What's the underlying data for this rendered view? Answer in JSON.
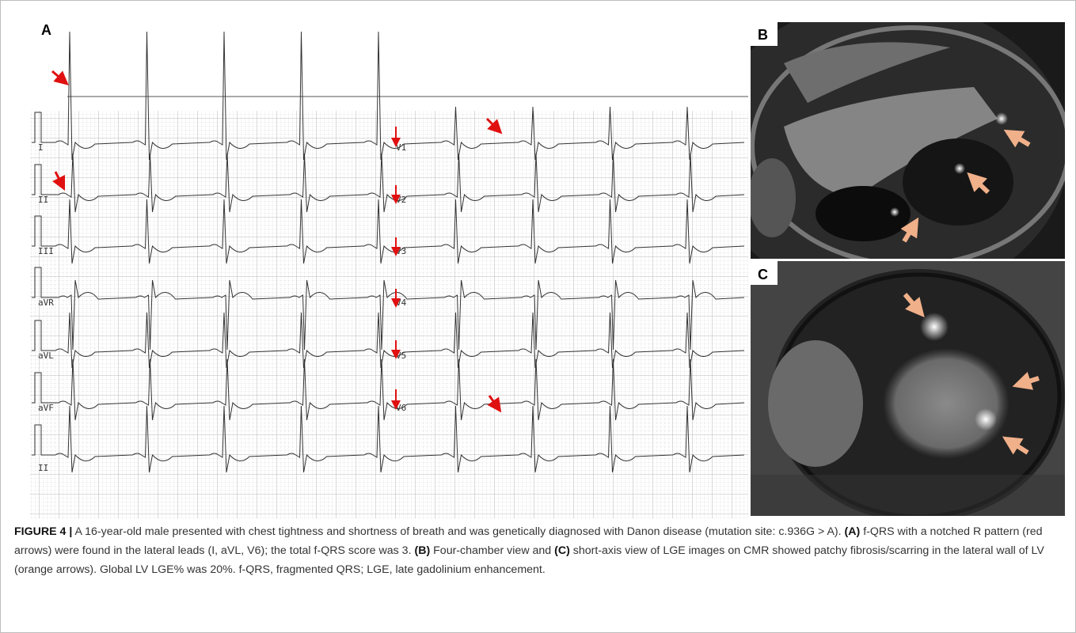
{
  "panels": {
    "a": {
      "label": "A",
      "leads_left": [
        "I",
        "II",
        "III",
        "aVR",
        "aVL",
        "aVF",
        "II"
      ],
      "leads_right": [
        "V1",
        "V2",
        "V3",
        "V4",
        "V5",
        "V6"
      ]
    },
    "b": {
      "label": "B"
    },
    "c": {
      "label": "C"
    }
  },
  "caption": {
    "figure_label": "FIGURE 4 |",
    "text_intro": "A 16-year-old male presented with chest tightness and shortness of breath and was genetically diagnosed with Danon disease (mutation site: c.936G > A).",
    "label_a": "(A)",
    "text_a": "f-QRS with a notched R pattern (red arrows) were found in the lateral leads (I, aVL, V6); the total f-QRS score was 3.",
    "label_b": "(B)",
    "text_b": "Four-chamber view and",
    "label_c": "(C)",
    "text_c": "short-axis view of LGE images on CMR showed patchy fibrosis/scarring in the lateral wall of LV (orange arrows). Global LV LGE% was 20%. f-QRS, fragmented QRS; LGE, late gadolinium enhancement."
  }
}
